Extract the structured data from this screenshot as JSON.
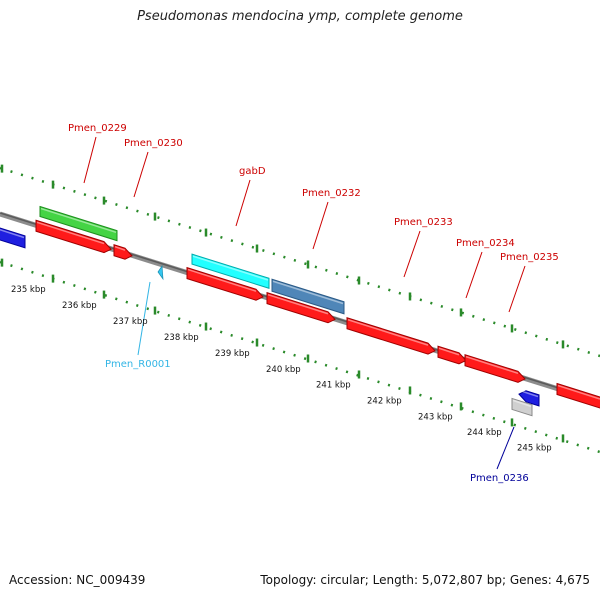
{
  "title": "Pseudomonas mendocina ymp, complete genome",
  "footer": {
    "accession": "Accession: NC_009439",
    "summary": "Topology: circular; Length: 5,072,807 bp; Genes: 4,675"
  },
  "colors": {
    "backbone": "#8c8c8c",
    "tick": "#2a8a2a",
    "label_red": "#cc0000",
    "label_cyan": "#33b5e5",
    "label_blue": "#000099"
  },
  "ruler_labels": [
    "235 kbp",
    "236 kbp",
    "237 kbp",
    "238 kbp",
    "239 kbp",
    "240 kbp",
    "241 kbp",
    "242 kbp",
    "243 kbp",
    "244 kbp",
    "245 kbp"
  ],
  "features": [
    {
      "id": "f-left-blue",
      "color": "#1f1fe0",
      "dark": "#000099"
    },
    {
      "id": "f-0229-cds",
      "color": "#ff1a1a",
      "dark": "#a00000"
    },
    {
      "id": "f-0229-gene",
      "color": "#44d444",
      "dark": "#1e8f1e"
    },
    {
      "id": "f-0230-cds",
      "color": "#ff1a1a",
      "dark": "#a00000"
    },
    {
      "id": "f-gabD-cds",
      "color": "#ff1a1a",
      "dark": "#a00000"
    },
    {
      "id": "f-gabD-gene",
      "color": "#22ffff",
      "dark": "#00aaaa"
    },
    {
      "id": "f-0232-cds",
      "color": "#ff1a1a",
      "dark": "#a00000"
    },
    {
      "id": "f-0232-gene",
      "color": "#4f86b8",
      "dark": "#2b5a86"
    },
    {
      "id": "f-0233-cds",
      "color": "#ff1a1a",
      "dark": "#a00000"
    },
    {
      "id": "f-0234-cds",
      "color": "#ff1a1a",
      "dark": "#a00000"
    },
    {
      "id": "f-0235-cds",
      "color": "#ff1a1a",
      "dark": "#a00000"
    },
    {
      "id": "f-right-red",
      "color": "#ff1a1a",
      "dark": "#a00000"
    },
    {
      "id": "f-0236-blue",
      "color": "#1f1fe0",
      "dark": "#000099"
    },
    {
      "id": "f-0236-gray",
      "color": "#d0d0d0",
      "dark": "#8a8a8a"
    },
    {
      "id": "f-R0001",
      "color": "#33c6f0",
      "dark": "#1a8fb0"
    }
  ],
  "labels": [
    {
      "text": "Pmen_0229",
      "color": "#cc0000"
    },
    {
      "text": "Pmen_0230",
      "color": "#cc0000"
    },
    {
      "text": "gabD",
      "color": "#cc0000"
    },
    {
      "text": "Pmen_0232",
      "color": "#cc0000"
    },
    {
      "text": "Pmen_0233",
      "color": "#cc0000"
    },
    {
      "text": "Pmen_0234",
      "color": "#cc0000"
    },
    {
      "text": "Pmen_0235",
      "color": "#cc0000"
    },
    {
      "text": "Pmen_R0001",
      "color": "#33b5e5"
    },
    {
      "text": "Pmen_0236",
      "color": "#000099"
    }
  ]
}
